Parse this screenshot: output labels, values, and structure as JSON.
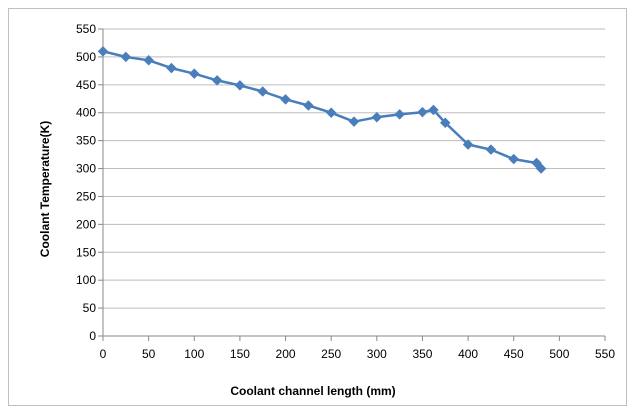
{
  "chart_data": {
    "type": "line",
    "title": "",
    "xlabel": "Coolant channel length (mm)",
    "ylabel": "Coolant Temperature(K)",
    "xlim": [
      0,
      550
    ],
    "ylim": [
      0,
      550
    ],
    "x_ticks": [
      0,
      50,
      100,
      150,
      200,
      250,
      300,
      350,
      400,
      450,
      500,
      550
    ],
    "y_ticks": [
      0,
      50,
      100,
      150,
      200,
      250,
      300,
      350,
      400,
      450,
      500,
      550
    ],
    "grid": "horizontal",
    "legend": "none",
    "series": [
      {
        "color": "#4a7ebb",
        "marker": "diamond",
        "x": [
          0,
          25,
          50,
          75,
          100,
          125,
          150,
          175,
          200,
          225,
          250,
          275,
          300,
          325,
          350,
          362,
          375,
          400,
          425,
          450,
          475,
          480
        ],
        "y": [
          510,
          500,
          494,
          480,
          470,
          458,
          449,
          438,
          424,
          413,
          400,
          384,
          392,
          397,
          401,
          405,
          382,
          343,
          334,
          317,
          310,
          300
        ]
      }
    ]
  }
}
